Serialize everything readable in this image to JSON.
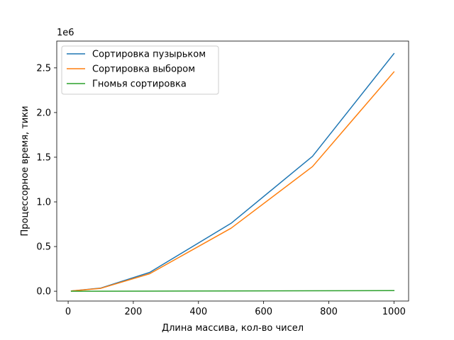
{
  "chart_data": {
    "type": "line",
    "title": "",
    "xlabel": "Длина массива, кол-во чисел",
    "ylabel": "Процессорное время, тики",
    "y_offset_label": "1e6",
    "xlim": [
      -35,
      1045
    ],
    "ylim": [
      -0.11,
      2.8
    ],
    "x_ticks": [
      0,
      200,
      400,
      600,
      800,
      1000
    ],
    "x_tick_labels": [
      "0",
      "200",
      "400",
      "600",
      "800",
      "1000"
    ],
    "y_ticks": [
      0,
      0.5,
      1.0,
      1.5,
      2.0,
      2.5
    ],
    "y_tick_labels": [
      "0.0",
      "0.5",
      "1.0",
      "1.5",
      "2.0",
      "2.5"
    ],
    "legend_position": "top-left",
    "grid": false,
    "x": [
      10,
      100,
      250,
      500,
      750,
      1000
    ],
    "series": [
      {
        "name": "Сортировка пузырьком",
        "color": "#1f77b4",
        "values": [
          0.003,
          0.035,
          0.21,
          0.76,
          1.51,
          2.66
        ]
      },
      {
        "name": "Сортировка выбором",
        "color": "#ff7f0e",
        "values": [
          0.003,
          0.032,
          0.195,
          0.705,
          1.395,
          2.455
        ]
      },
      {
        "name": "Гномья сортировка",
        "color": "#2ca02c",
        "values": [
          0.0,
          0.0,
          0.001,
          0.003,
          0.005,
          0.007
        ]
      }
    ]
  }
}
